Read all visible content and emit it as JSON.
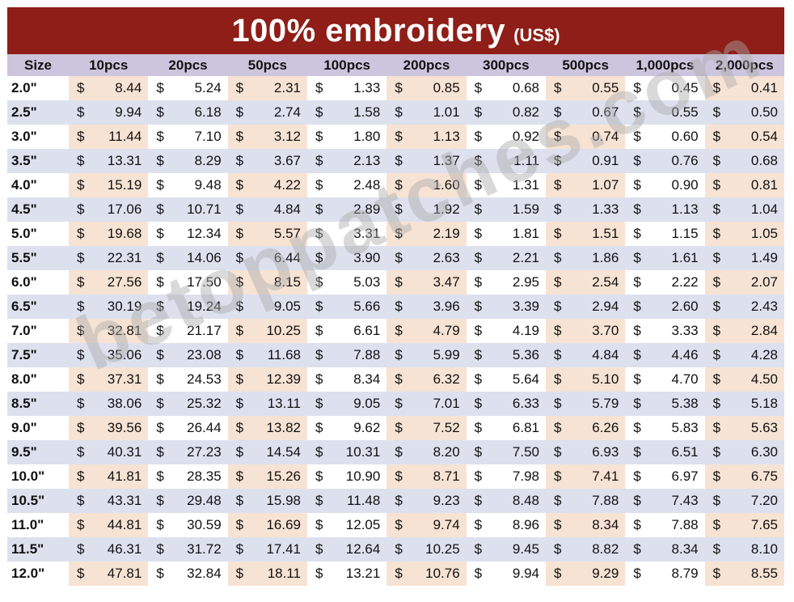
{
  "title": {
    "main": "100% embroidery",
    "unit": "(US$)"
  },
  "currency_symbol": "$",
  "watermark": "betoppatches.com",
  "colors": {
    "banner": "#8e1e17",
    "header_bg": "#cdc5dd",
    "row_alt": "#dde1ee",
    "tint": "#f7e3d3"
  },
  "headers": [
    "Size",
    "10pcs",
    "20pcs",
    "50pcs",
    "100pcs",
    "200pcs",
    "300pcs",
    "500pcs",
    "1,000pcs",
    "2,000pcs"
  ],
  "rows": [
    {
      "size": "2.0\"",
      "prices": [
        "8.44",
        "5.24",
        "2.31",
        "1.33",
        "0.85",
        "0.68",
        "0.55",
        "0.45",
        "0.41"
      ]
    },
    {
      "size": "2.5\"",
      "prices": [
        "9.94",
        "6.18",
        "2.74",
        "1.58",
        "1.01",
        "0.82",
        "0.67",
        "0.55",
        "0.50"
      ]
    },
    {
      "size": "3.0\"",
      "prices": [
        "11.44",
        "7.10",
        "3.12",
        "1.80",
        "1.13",
        "0.92",
        "0.74",
        "0.60",
        "0.54"
      ]
    },
    {
      "size": "3.5\"",
      "prices": [
        "13.31",
        "8.29",
        "3.67",
        "2.13",
        "1.37",
        "1.11",
        "0.91",
        "0.76",
        "0.68"
      ]
    },
    {
      "size": "4.0\"",
      "prices": [
        "15.19",
        "9.48",
        "4.22",
        "2.48",
        "1.60",
        "1.31",
        "1.07",
        "0.90",
        "0.81"
      ]
    },
    {
      "size": "4.5\"",
      "prices": [
        "17.06",
        "10.71",
        "4.84",
        "2.89",
        "1.92",
        "1.59",
        "1.33",
        "1.13",
        "1.04"
      ]
    },
    {
      "size": "5.0\"",
      "prices": [
        "19.68",
        "12.34",
        "5.57",
        "3.31",
        "2.19",
        "1.81",
        "1.51",
        "1.15",
        "1.05"
      ]
    },
    {
      "size": "5.5\"",
      "prices": [
        "22.31",
        "14.06",
        "6.44",
        "3.90",
        "2.63",
        "2.21",
        "1.86",
        "1.61",
        "1.49"
      ]
    },
    {
      "size": "6.0\"",
      "prices": [
        "27.56",
        "17.50",
        "8.15",
        "5.03",
        "3.47",
        "2.95",
        "2.54",
        "2.22",
        "2.07"
      ]
    },
    {
      "size": "6.5\"",
      "prices": [
        "30.19",
        "19.24",
        "9.05",
        "5.66",
        "3.96",
        "3.39",
        "2.94",
        "2.60",
        "2.43"
      ]
    },
    {
      "size": "7.0\"",
      "prices": [
        "32.81",
        "21.17",
        "10.25",
        "6.61",
        "4.79",
        "4.19",
        "3.70",
        "3.33",
        "2.84"
      ]
    },
    {
      "size": "7.5\"",
      "prices": [
        "35.06",
        "23.08",
        "11.68",
        "7.88",
        "5.99",
        "5.36",
        "4.84",
        "4.46",
        "4.28"
      ]
    },
    {
      "size": "8.0\"",
      "prices": [
        "37.31",
        "24.53",
        "12.39",
        "8.34",
        "6.32",
        "5.64",
        "5.10",
        "4.70",
        "4.50"
      ]
    },
    {
      "size": "8.5\"",
      "prices": [
        "38.06",
        "25.32",
        "13.11",
        "9.05",
        "7.01",
        "6.33",
        "5.79",
        "5.38",
        "5.18"
      ]
    },
    {
      "size": "9.0\"",
      "prices": [
        "39.56",
        "26.44",
        "13.82",
        "9.62",
        "7.52",
        "6.81",
        "6.26",
        "5.83",
        "5.63"
      ]
    },
    {
      "size": "9.5\"",
      "prices": [
        "40.31",
        "27.23",
        "14.54",
        "10.31",
        "8.20",
        "7.50",
        "6.93",
        "6.51",
        "6.30"
      ]
    },
    {
      "size": "10.0\"",
      "prices": [
        "41.81",
        "28.35",
        "15.26",
        "10.90",
        "8.71",
        "7.98",
        "7.41",
        "6.97",
        "6.75"
      ]
    },
    {
      "size": "10.5\"",
      "prices": [
        "43.31",
        "29.48",
        "15.98",
        "11.48",
        "9.23",
        "8.48",
        "7.88",
        "7.43",
        "7.20"
      ]
    },
    {
      "size": "11.0\"",
      "prices": [
        "44.81",
        "30.59",
        "16.69",
        "12.05",
        "9.74",
        "8.96",
        "8.34",
        "7.88",
        "7.65"
      ]
    },
    {
      "size": "11.5\"",
      "prices": [
        "46.31",
        "31.72",
        "17.41",
        "12.64",
        "10.25",
        "9.45",
        "8.82",
        "8.34",
        "8.10"
      ]
    },
    {
      "size": "12.0\"",
      "prices": [
        "47.81",
        "32.84",
        "18.11",
        "13.21",
        "10.76",
        "9.94",
        "9.29",
        "8.79",
        "8.55"
      ]
    }
  ]
}
